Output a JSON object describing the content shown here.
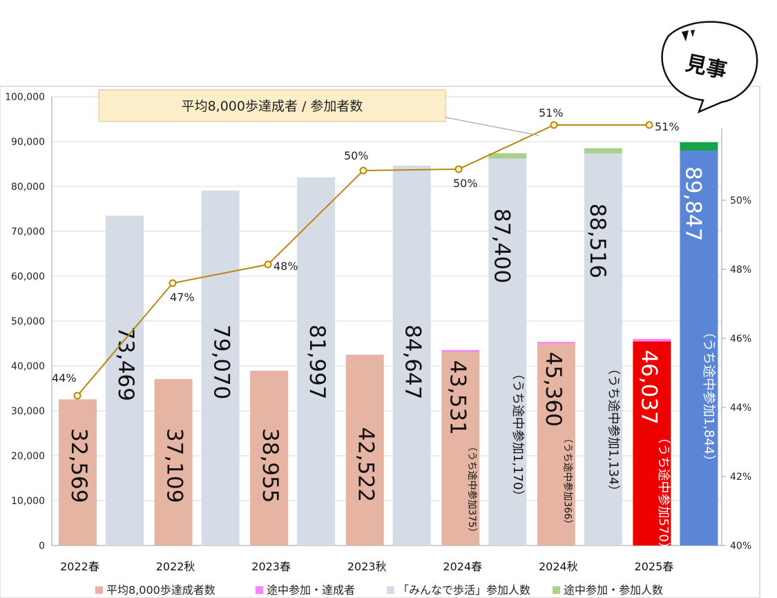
{
  "chart_data": {
    "type": "bar",
    "categories": [
      "2022春",
      "2022秋",
      "2023春",
      "2023秋",
      "2024春",
      "2024秋",
      "2025春"
    ],
    "series": [
      {
        "name": "平均8,000歩達成者数",
        "values": [
          32569,
          37109,
          38955,
          42522,
          43156,
          44994,
          45467
        ],
        "color": "#e6b4a2"
      },
      {
        "name": "途中参加・達成者",
        "values": [
          0,
          0,
          0,
          0,
          375,
          366,
          570
        ],
        "color": "#ff80ff"
      },
      {
        "name": "「みんなで歩活」参加人数",
        "values": [
          73469,
          79070,
          81997,
          84647,
          86230,
          87382,
          88003
        ],
        "color": "#d5dce6"
      },
      {
        "name": "途中参加・参加人数",
        "values": [
          0,
          0,
          0,
          0,
          1170,
          1134,
          1844
        ],
        "color": "#a9d18e"
      }
    ],
    "rate": {
      "name": "平均8,000歩達成者 / 参加者数",
      "values": [
        44,
        47,
        48,
        50,
        50,
        51,
        51
      ],
      "labels": [
        "44%",
        "47%",
        "48%",
        "50%",
        "50%",
        "51%",
        "51%"
      ],
      "color": "#b8860b"
    },
    "achiever_labels": [
      "32,569",
      "37,109",
      "38,955",
      "42,522",
      "43,531",
      "45,360",
      "46,037"
    ],
    "achiever_sub_labels": [
      "",
      "",
      "",
      "",
      "（うち途中参加375）",
      "（うち途中参加366）",
      "（うち途中参加570）"
    ],
    "participant_labels": [
      "73,469",
      "79,070",
      "81,997",
      "84,647",
      "87,400",
      "88,516",
      "89,847"
    ],
    "participant_sub_labels": [
      "",
      "",
      "",
      "",
      "（うち途中参加1,170）",
      "（うち途中参加1,134）",
      "（うち途中参加1,844）"
    ],
    "highlight": {
      "achiever_color": "#ee0000",
      "participant_color": "#5b85d6",
      "participant_extra_color": "#16a34a"
    },
    "ylim": [
      0,
      100000
    ],
    "yticks": [
      "0",
      "10,000",
      "20,000",
      "30,000",
      "40,000",
      "50,000",
      "60,000",
      "70,000",
      "80,000",
      "90,000",
      "100,000"
    ],
    "y2lim": [
      40,
      52
    ],
    "y2ticks": [
      "40%",
      "42%",
      "44%",
      "46%",
      "48%",
      "50%"
    ],
    "grid": true,
    "legend_position": "bottom"
  },
  "annotation": {
    "text": "平均8,000歩達成者 / 参加者数"
  },
  "badge": {
    "text": "見事"
  }
}
